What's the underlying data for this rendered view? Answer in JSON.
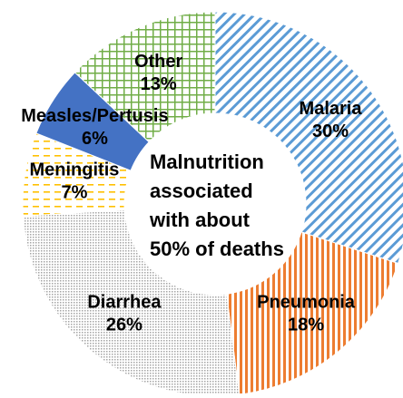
{
  "chart_data": {
    "type": "donut",
    "categories": [
      "Malaria",
      "Pneumonia",
      "Diarrhea",
      "Meningitis",
      "Measles/Pertusis",
      "Other"
    ],
    "values": [
      30,
      18,
      26,
      7,
      6,
      13
    ],
    "value_labels": [
      "30%",
      "18%",
      "26%",
      "7%",
      "6%",
      "13%"
    ],
    "colors": [
      "#5b9bd5",
      "#ed7d31",
      "#a5a5a5",
      "#ffc000",
      "#4472c4",
      "#70ad47"
    ],
    "annotation": [
      "Malnutrition",
      "associated",
      "with about",
      "50% of deaths"
    ]
  }
}
